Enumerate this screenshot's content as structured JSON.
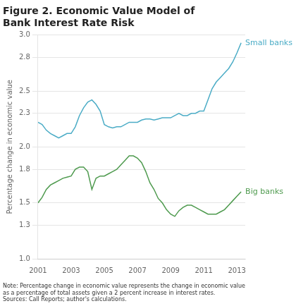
{
  "chart_data": {
    "type": "line",
    "title": "Figure 2. Economic Value Model of\nBank Interest Rate Risk",
    "ylabel": "Percentage change in economic value",
    "note": "Note: Percentage change in economic value represents the change in economic value\nas a percentage of total assets given a 2 percent increase in interest rates.\nSources: Call Reports; author's calculations.",
    "x": [
      2001.0,
      2001.25,
      2001.5,
      2001.75,
      2002.0,
      2002.25,
      2002.5,
      2002.75,
      2003.0,
      2003.25,
      2003.5,
      2003.75,
      2004.0,
      2004.25,
      2004.5,
      2004.75,
      2005.0,
      2005.25,
      2005.5,
      2005.75,
      2006.0,
      2006.25,
      2006.5,
      2006.75,
      2007.0,
      2007.25,
      2007.5,
      2007.75,
      2008.0,
      2008.25,
      2008.5,
      2008.75,
      2009.0,
      2009.25,
      2009.5,
      2009.75,
      2010.0,
      2010.25,
      2010.5,
      2010.75,
      2011.0,
      2011.25,
      2011.5,
      2011.75,
      2012.0,
      2012.25,
      2012.5,
      2012.75,
      2013.0,
      2013.25
    ],
    "series": [
      {
        "name": "Small banks",
        "color": "#4BACC6",
        "values": [
          2.22,
          2.2,
          2.15,
          2.12,
          2.1,
          2.08,
          2.1,
          2.12,
          2.12,
          2.18,
          2.28,
          2.35,
          2.4,
          2.42,
          2.38,
          2.32,
          2.2,
          2.18,
          2.17,
          2.18,
          2.18,
          2.2,
          2.22,
          2.22,
          2.22,
          2.24,
          2.25,
          2.25,
          2.24,
          2.25,
          2.26,
          2.26,
          2.26,
          2.28,
          2.3,
          2.28,
          2.28,
          2.3,
          2.3,
          2.32,
          2.32,
          2.42,
          2.52,
          2.58,
          2.62,
          2.66,
          2.7,
          2.76,
          2.84,
          2.93
        ]
      },
      {
        "name": "Big banks",
        "color": "#4E9A4E",
        "values": [
          1.5,
          1.55,
          1.62,
          1.66,
          1.68,
          1.7,
          1.72,
          1.73,
          1.74,
          1.8,
          1.82,
          1.82,
          1.78,
          1.62,
          1.72,
          1.74,
          1.74,
          1.76,
          1.78,
          1.8,
          1.84,
          1.88,
          1.92,
          1.92,
          1.9,
          1.86,
          1.78,
          1.68,
          1.62,
          1.54,
          1.5,
          1.44,
          1.4,
          1.38,
          1.43,
          1.46,
          1.48,
          1.48,
          1.46,
          1.44,
          1.42,
          1.4,
          1.4,
          1.4,
          1.42,
          1.44,
          1.48,
          1.52,
          1.56,
          1.6
        ]
      }
    ],
    "xlim": [
      2001.0,
      2013.5
    ],
    "xticks": [
      2001,
      2003,
      2005,
      2007,
      2009,
      2011,
      2013
    ],
    "ylim": [
      1.0,
      3.0
    ],
    "yticks": [
      {
        "value": 1.0,
        "label": "1.0"
      },
      1.3,
      1.5,
      1.8,
      {
        "value": 2.0,
        "label": "2.0"
      },
      2.3,
      2.5,
      2.8,
      {
        "value": 3.0,
        "label": "3.0"
      }
    ],
    "grid": "y"
  }
}
